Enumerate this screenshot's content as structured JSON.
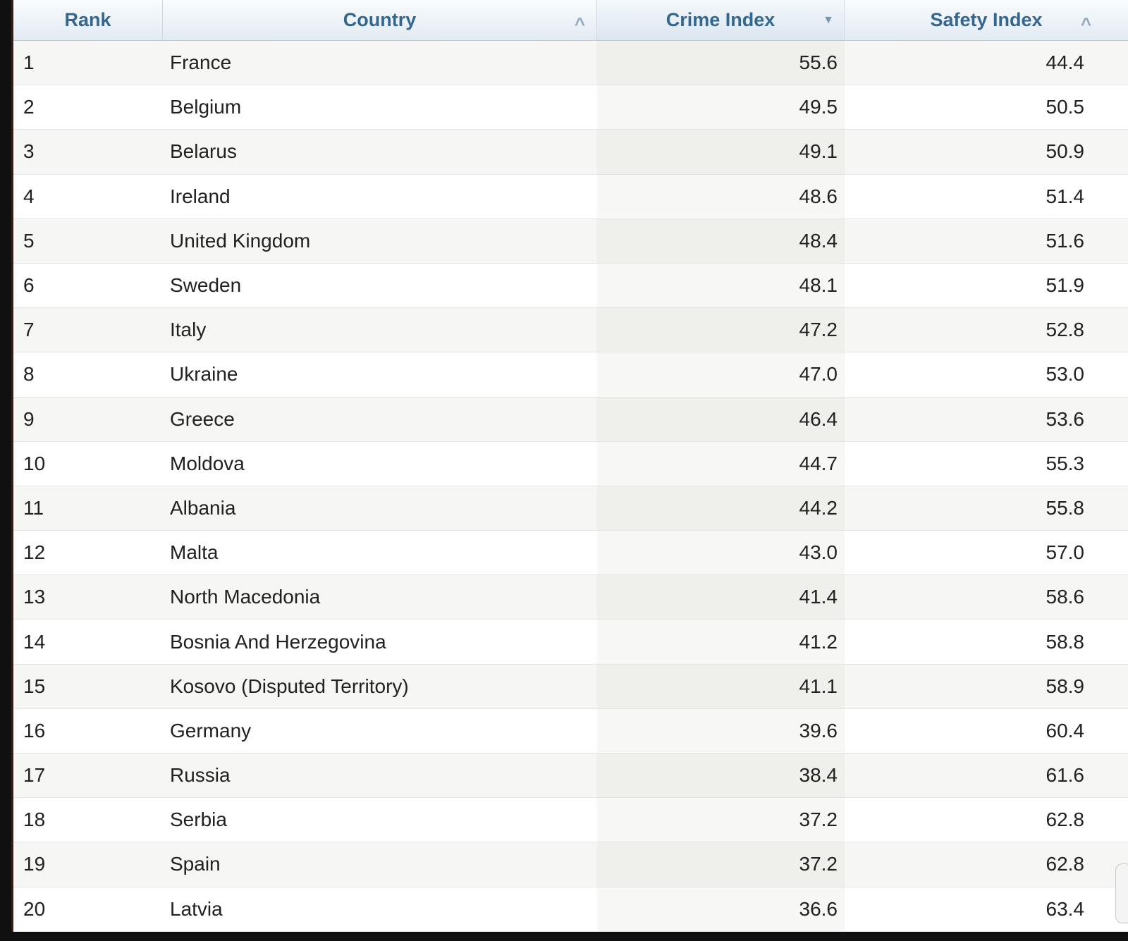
{
  "table": {
    "columns": {
      "rank": {
        "label": "Rank",
        "sort_state": "none"
      },
      "country": {
        "label": "Country",
        "sort_state": "sortable-asc"
      },
      "crime": {
        "label": "Crime Index",
        "sort_state": "sorted-desc"
      },
      "safety": {
        "label": "Safety Index",
        "sort_state": "sortable-asc"
      }
    },
    "icons": {
      "sort_asc_glyph": "^",
      "sort_desc_glyph": "▼"
    },
    "rows": [
      {
        "rank": "1",
        "country": "France",
        "crime": "55.6",
        "safety": "44.4"
      },
      {
        "rank": "2",
        "country": "Belgium",
        "crime": "49.5",
        "safety": "50.5"
      },
      {
        "rank": "3",
        "country": "Belarus",
        "crime": "49.1",
        "safety": "50.9"
      },
      {
        "rank": "4",
        "country": "Ireland",
        "crime": "48.6",
        "safety": "51.4"
      },
      {
        "rank": "5",
        "country": "United Kingdom",
        "crime": "48.4",
        "safety": "51.6"
      },
      {
        "rank": "6",
        "country": "Sweden",
        "crime": "48.1",
        "safety": "51.9"
      },
      {
        "rank": "7",
        "country": "Italy",
        "crime": "47.2",
        "safety": "52.8"
      },
      {
        "rank": "8",
        "country": "Ukraine",
        "crime": "47.0",
        "safety": "53.0"
      },
      {
        "rank": "9",
        "country": "Greece",
        "crime": "46.4",
        "safety": "53.6"
      },
      {
        "rank": "10",
        "country": "Moldova",
        "crime": "44.7",
        "safety": "55.3"
      },
      {
        "rank": "11",
        "country": "Albania",
        "crime": "44.2",
        "safety": "55.8"
      },
      {
        "rank": "12",
        "country": "Malta",
        "crime": "43.0",
        "safety": "57.0"
      },
      {
        "rank": "13",
        "country": "North Macedonia",
        "crime": "41.4",
        "safety": "58.6"
      },
      {
        "rank": "14",
        "country": "Bosnia And Herzegovina",
        "crime": "41.2",
        "safety": "58.8"
      },
      {
        "rank": "15",
        "country": "Kosovo (Disputed Territory)",
        "crime": "41.1",
        "safety": "58.9"
      },
      {
        "rank": "16",
        "country": "Germany",
        "crime": "39.6",
        "safety": "60.4"
      },
      {
        "rank": "17",
        "country": "Russia",
        "crime": "38.4",
        "safety": "61.6"
      },
      {
        "rank": "18",
        "country": "Serbia",
        "crime": "37.2",
        "safety": "62.8"
      },
      {
        "rank": "19",
        "country": "Spain",
        "crime": "37.2",
        "safety": "62.8"
      },
      {
        "rank": "20",
        "country": "Latvia",
        "crime": "36.6",
        "safety": "63.4"
      }
    ],
    "colors": {
      "header_text": "#34678f",
      "header_bg_top": "#f9fcfe",
      "header_bg_bottom": "#e2eaf2",
      "row_stripe": "#f6f6f5",
      "sorted_column_stripe": "#efefec",
      "body_text": "#212121"
    }
  }
}
